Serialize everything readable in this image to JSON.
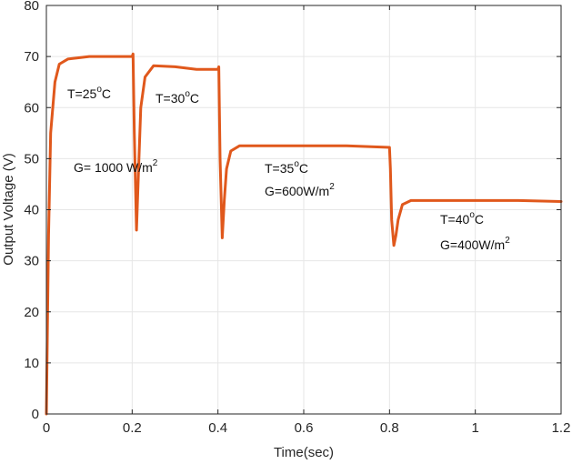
{
  "chart_data": {
    "type": "line",
    "title": "",
    "xlabel": "Time(sec)",
    "ylabel": "Output Voltage (V)",
    "xlim": [
      0,
      1.2
    ],
    "ylim": [
      0,
      80
    ],
    "xticks": [
      "0",
      "0.2",
      "0.4",
      "0.6",
      "0.8",
      "1",
      "1.2"
    ],
    "yticks": [
      "0",
      "10",
      "20",
      "30",
      "40",
      "50",
      "60",
      "70",
      "80"
    ],
    "grid": true,
    "legend": null,
    "line_color": "#e0581c",
    "series": [
      {
        "name": "Output Voltage",
        "x": [
          0,
          0.005,
          0.01,
          0.02,
          0.03,
          0.05,
          0.08,
          0.1,
          0.15,
          0.2,
          0.202,
          0.205,
          0.21,
          0.215,
          0.22,
          0.23,
          0.25,
          0.3,
          0.35,
          0.4,
          0.402,
          0.405,
          0.41,
          0.415,
          0.42,
          0.43,
          0.45,
          0.5,
          0.6,
          0.7,
          0.8,
          0.802,
          0.805,
          0.81,
          0.815,
          0.82,
          0.83,
          0.85,
          0.9,
          1.0,
          1.1,
          1.2
        ],
        "y": [
          0,
          35,
          55,
          65,
          68.5,
          69.5,
          69.8,
          70,
          70,
          70,
          70.5,
          55,
          36,
          48,
          60,
          66,
          68.2,
          68,
          67.5,
          67.5,
          68,
          50,
          34.5,
          42,
          48,
          51.5,
          52.5,
          52.5,
          52.5,
          52.5,
          52.2,
          48,
          38,
          33,
          35,
          38,
          41,
          41.8,
          41.8,
          41.8,
          41.8,
          41.6
        ]
      }
    ],
    "annotations": [
      {
        "text": "T=25°C",
        "x": 0.05,
        "y": 63
      },
      {
        "text": "T=30°C",
        "x": 0.25,
        "y": 62.5
      },
      {
        "text": "G= 1000 W/m²",
        "x": 0.06,
        "y": 48
      },
      {
        "text": "T=35°C",
        "x": 0.49,
        "y": 48.5
      },
      {
        "text": "G=600W/m²",
        "x": 0.49,
        "y": 42
      },
      {
        "text": "T=40°C",
        "x": 0.87,
        "y": 36
      },
      {
        "text": "G=400W/m²",
        "x": 0.87,
        "y": 29.5
      }
    ]
  },
  "labels": {
    "xlabel": "Time(sec)",
    "ylabel": "Output Voltage (V)",
    "ann1_t": "T=25",
    "ann1_sup": "o",
    "ann1_unit": "C",
    "ann2_t": "T=30",
    "ann2_sup": "o",
    "ann2_unit": "C",
    "ann3_g": "G= 1000 W/m",
    "ann3_sup": "2",
    "ann4_t": "T=35",
    "ann4_sup": "o",
    "ann4_unit": "C",
    "ann5_g": "G=600W/m",
    "ann5_sup": "2",
    "ann6_t": "T=40",
    "ann6_sup": "o",
    "ann6_unit": "C",
    "ann7_g": "G=400W/m",
    "ann7_sup": "2"
  }
}
